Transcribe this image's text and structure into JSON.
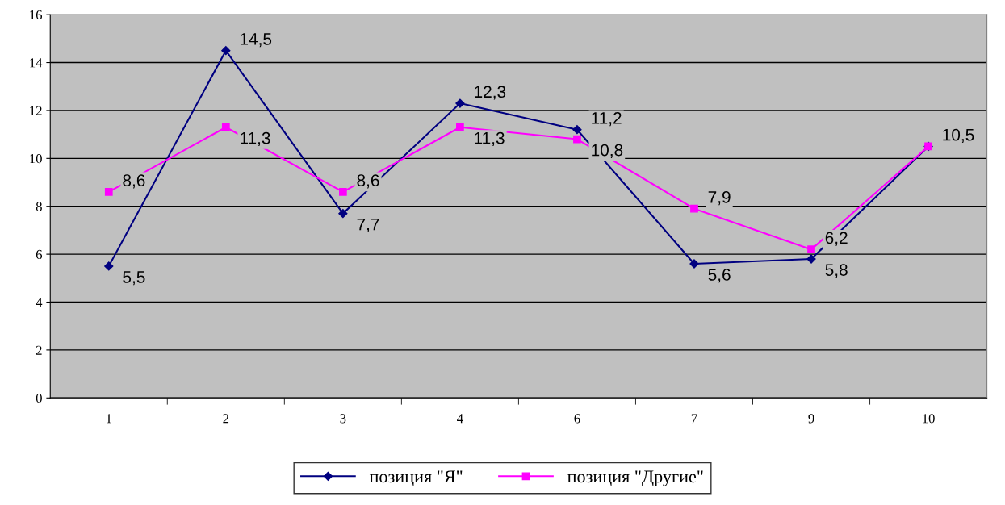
{
  "chart_data": {
    "type": "line",
    "categories": [
      "1",
      "2",
      "3",
      "4",
      "6",
      "7",
      "9",
      "10"
    ],
    "series": [
      {
        "name": "позиция \"Я\"",
        "color": "#000080",
        "marker": "diamond",
        "values": [
          5.5,
          14.5,
          7.7,
          12.3,
          11.2,
          5.6,
          5.8,
          10.5
        ],
        "value_labels": [
          "5,5",
          "14,5",
          "7,7",
          "12,3",
          "11,2",
          "5,6",
          "5,8",
          null
        ]
      },
      {
        "name": "позиция \"Другие\"",
        "color": "#ff00ff",
        "marker": "square",
        "values": [
          8.6,
          11.3,
          8.6,
          11.3,
          10.8,
          7.9,
          6.2,
          10.5
        ],
        "value_labels": [
          "8,6",
          "11,3",
          "8,6",
          "11,3",
          "10,8",
          "7,9",
          "6,2",
          "10,5"
        ]
      }
    ],
    "ylim": [
      0,
      16
    ],
    "yticks": [
      0,
      2,
      4,
      6,
      8,
      10,
      12,
      14,
      16
    ],
    "grid": "y",
    "legend": "bottom",
    "line_style": "solid"
  }
}
